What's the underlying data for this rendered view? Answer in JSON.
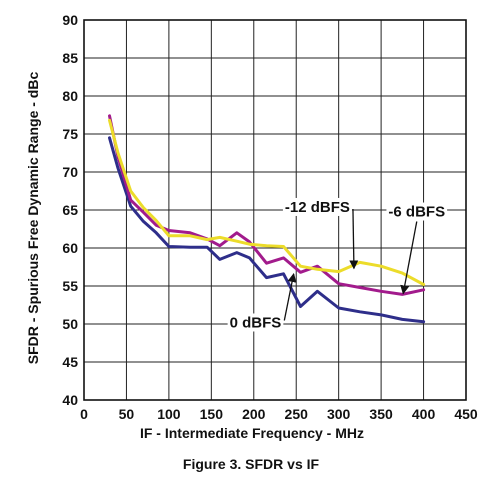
{
  "caption": "Figure 3. SFDR vs IF",
  "chart_data": {
    "type": "line",
    "xlabel": "IF - Intermediate Frequency - MHz",
    "ylabel": "SFDR - Spurious Free Dynamic Range - dBc",
    "xlim": [
      0,
      450
    ],
    "ylim": [
      40,
      90
    ],
    "xticks": [
      0,
      50,
      100,
      150,
      200,
      250,
      300,
      350,
      400,
      450
    ],
    "yticks": [
      40,
      45,
      50,
      55,
      60,
      65,
      70,
      75,
      80,
      85,
      90
    ],
    "grid": true,
    "series": [
      {
        "name": "0 dBFS",
        "color": "#2e2e8a",
        "x": [
          30,
          40,
          55,
          70,
          85,
          100,
          125,
          145,
          160,
          180,
          195,
          215,
          235,
          255,
          275,
          300,
          325,
          350,
          375,
          400
        ],
        "y": [
          74.5,
          70.5,
          65.5,
          63.5,
          62,
          60.2,
          60.1,
          60.1,
          58.5,
          59.4,
          58.7,
          56.1,
          56.6,
          52.3,
          54.3,
          52.1,
          51.6,
          51.2,
          50.6,
          50.3
        ]
      },
      {
        "name": "-6 dBFS",
        "color": "#a21b8c",
        "x": [
          30,
          40,
          55,
          70,
          85,
          100,
          125,
          145,
          160,
          180,
          195,
          215,
          235,
          255,
          275,
          300,
          325,
          350,
          375,
          400
        ],
        "y": [
          77.4,
          72,
          66.3,
          64.7,
          63,
          62.3,
          62,
          61.2,
          60.3,
          62,
          60.8,
          58,
          58.7,
          56.8,
          57.6,
          55.3,
          54.8,
          54.3,
          53.9,
          54.5
        ]
      },
      {
        "name": "-12 dBFS",
        "color": "#ecdc2a",
        "x": [
          30,
          40,
          55,
          70,
          85,
          100,
          125,
          145,
          160,
          180,
          195,
          215,
          235,
          255,
          275,
          300,
          325,
          350,
          375,
          400
        ],
        "y": [
          76.8,
          72.5,
          67.5,
          65.3,
          63.6,
          61.6,
          61.6,
          61.1,
          61.4,
          60.9,
          60.5,
          60.3,
          60.2,
          57.6,
          57.2,
          56.9,
          58.1,
          57.6,
          56.7,
          55.2
        ]
      }
    ],
    "annotations": [
      {
        "text": "-12 dBFS",
        "label_x": 275,
        "label_y": 65.4,
        "target_x": 318,
        "target_y": 57.3
      },
      {
        "text": "-6 dBFS",
        "label_x": 392,
        "label_y": 64.8,
        "target_x": 376,
        "target_y": 54.0
      },
      {
        "text": "0 dBFS",
        "label_x": 202,
        "label_y": 50.2,
        "target_x": 247,
        "target_y": 56.6
      }
    ]
  }
}
